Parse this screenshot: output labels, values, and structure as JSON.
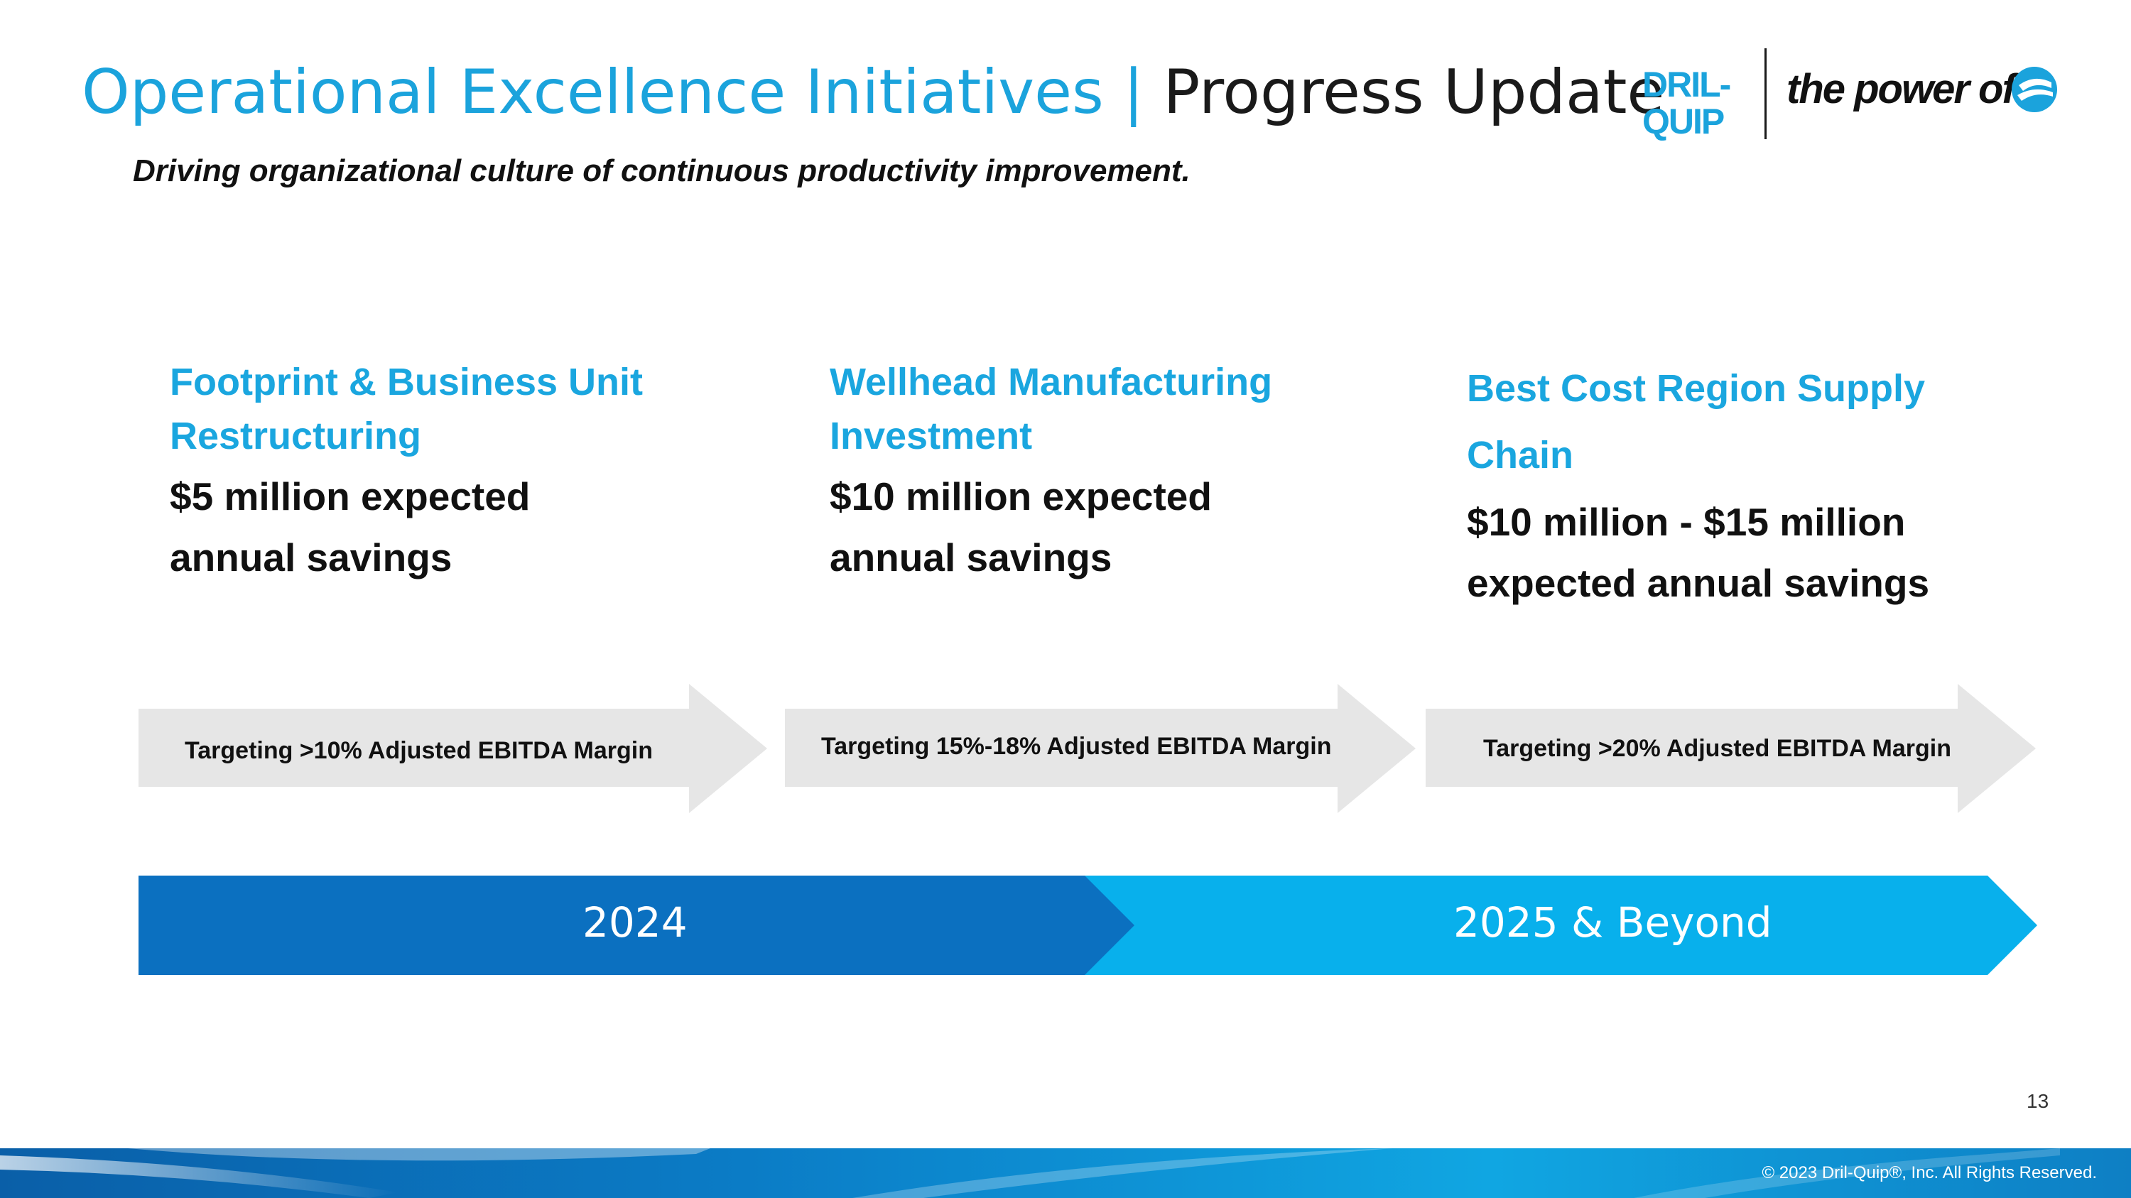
{
  "header": {
    "title_part1": "Operational Excellence Initiatives |",
    "title_part2": " Progress Update",
    "subtitle": "Driving organizational culture of continuous productivity improvement."
  },
  "logo": {
    "wordmark_line1": "DRIL-",
    "wordmark_line2": "QUIP",
    "tagline": "the power of",
    "icon": "dril-quip-e-icon"
  },
  "initiatives": [
    {
      "heading_line1": "Footprint & Business Unit",
      "heading_line2": "Restructuring",
      "body_line1": "$5 million expected",
      "body_line2": "annual savings",
      "target": "Targeting >10% Adjusted EBITDA Margin"
    },
    {
      "heading_line1": "Wellhead Manufacturing",
      "heading_line2": "Investment",
      "body_line1": "$10 million expected",
      "body_line2": "annual savings",
      "target": "Targeting 15%-18% Adjusted EBITDA Margin"
    },
    {
      "heading_line1": "Best Cost Region Supply",
      "heading_line2": "Chain",
      "body_line1": "$10 million - $15 million",
      "body_line2": "expected annual savings",
      "target": "Targeting >20% Adjusted EBITDA Margin"
    }
  ],
  "timeline": {
    "phase1": "2024",
    "phase2": "2025 & Beyond"
  },
  "colors": {
    "title_blue": "#1ba3dc",
    "heading_blue": "#1aa6df",
    "timeline_dark": "#0b70c0",
    "timeline_light": "#08b0ec",
    "arrow_grey": "#e6e6e6"
  },
  "footer": {
    "page_number": "13",
    "copyright": "© 2023 Dril-Quip®, Inc. All Rights Reserved."
  }
}
